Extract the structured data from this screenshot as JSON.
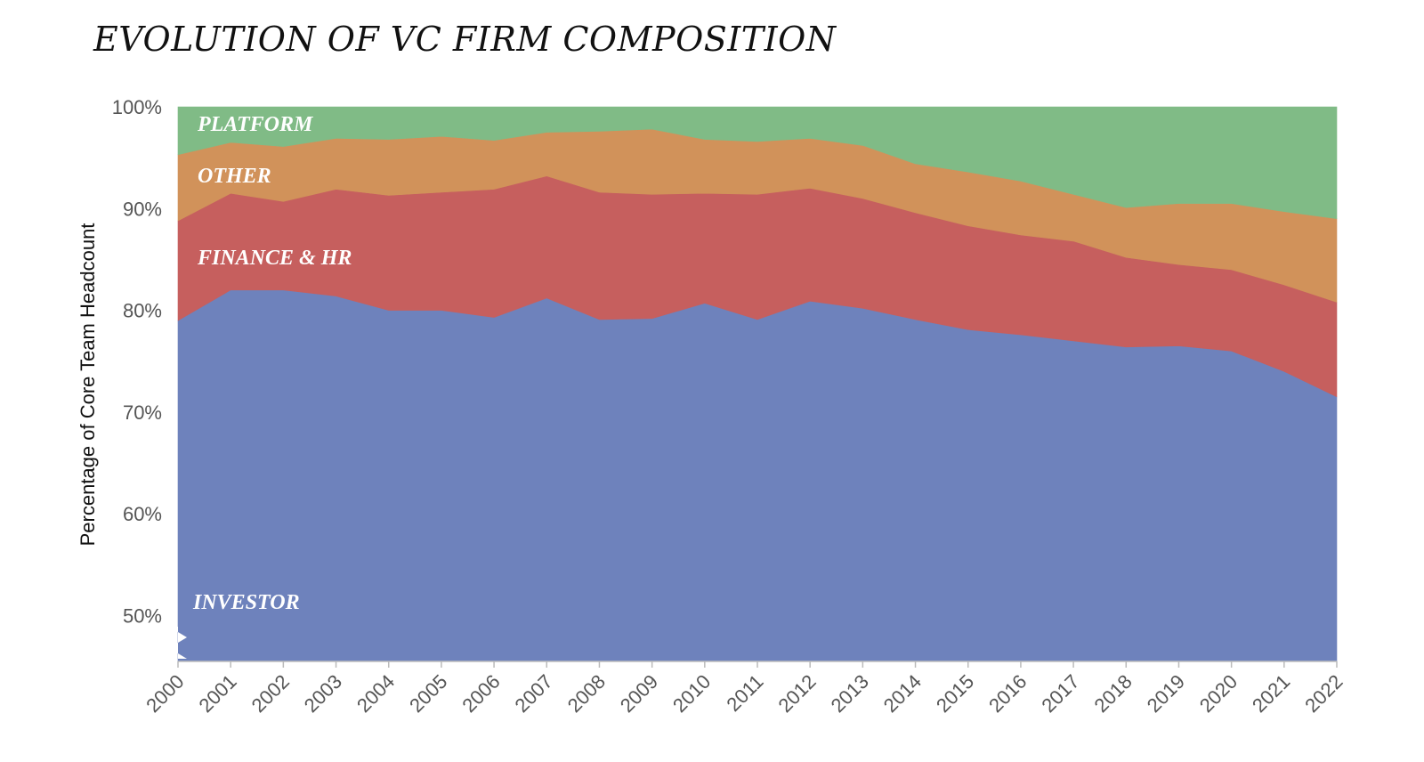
{
  "chart_data": {
    "type": "area",
    "stacked": true,
    "title": "EVOLUTION OF VC FIRM COMPOSITION",
    "ylabel": "Percentage of Core Team Headcount",
    "xlabel": "",
    "x": [
      "2000",
      "2001",
      "2002",
      "2003",
      "2004",
      "2005",
      "2006",
      "2007",
      "2008",
      "2009",
      "2010",
      "2011",
      "2012",
      "2013",
      "2014",
      "2015",
      "2016",
      "2017",
      "2018",
      "2019",
      "2020",
      "2021",
      "2022"
    ],
    "ylim": [
      45.5,
      100
    ],
    "axis_break": true,
    "y_ticks": [
      {
        "value": 100,
        "label": "100%"
      },
      {
        "value": 90,
        "label": "90%"
      },
      {
        "value": 80,
        "label": "80%"
      },
      {
        "value": 70,
        "label": "70%"
      },
      {
        "value": 60,
        "label": "60%"
      },
      {
        "value": 50,
        "label": "50%"
      }
    ],
    "grid": false,
    "series": [
      {
        "name": "INVESTOR",
        "color": "#6e82bc",
        "values": [
          79.0,
          82.0,
          82.0,
          81.4,
          80.0,
          80.0,
          79.3,
          81.2,
          79.1,
          79.2,
          80.7,
          79.1,
          80.9,
          80.2,
          79.1,
          78.1,
          77.6,
          77.0,
          76.4,
          76.5,
          76.0,
          74.0,
          71.5
        ]
      },
      {
        "name": "FINANCE & HR",
        "color": "#c65f5e",
        "values": [
          9.8,
          9.5,
          8.7,
          10.5,
          11.3,
          11.6,
          12.6,
          12.0,
          12.5,
          12.2,
          10.8,
          12.3,
          11.1,
          10.8,
          10.5,
          10.2,
          9.8,
          9.8,
          8.8,
          8.0,
          8.0,
          8.5,
          9.3
        ]
      },
      {
        "name": "OTHER",
        "color": "#d1925a",
        "values": [
          6.5,
          5.0,
          5.4,
          5.0,
          5.5,
          5.5,
          4.8,
          4.3,
          6.0,
          6.4,
          5.3,
          5.2,
          4.9,
          5.2,
          4.8,
          5.3,
          5.3,
          4.6,
          4.9,
          6.0,
          6.5,
          7.2,
          8.2
        ]
      },
      {
        "name": "PLATFORM",
        "color": "#80bb86",
        "values": [
          4.7,
          3.5,
          3.9,
          3.1,
          3.2,
          2.9,
          3.3,
          2.5,
          2.4,
          2.2,
          3.2,
          3.4,
          3.1,
          3.8,
          5.6,
          6.4,
          7.3,
          8.6,
          9.9,
          9.5,
          9.5,
          10.3,
          11.0
        ]
      }
    ]
  }
}
